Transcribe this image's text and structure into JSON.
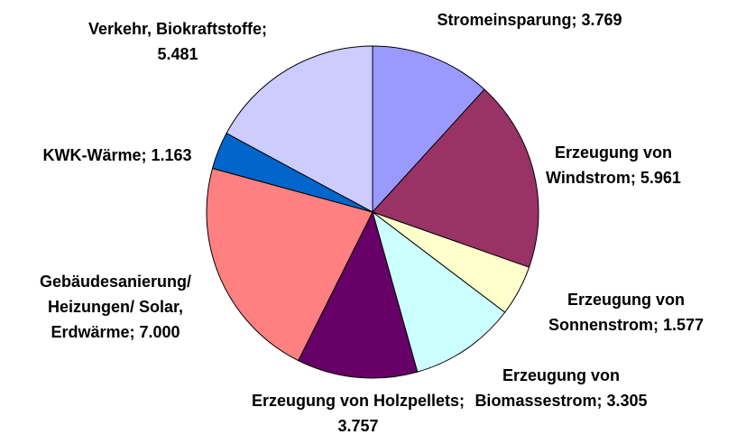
{
  "chart_data": {
    "type": "pie",
    "categories": [
      "Stromeinsparung",
      "Erzeugung von Windstrom",
      "Erzeugung von Sonnenstrom",
      "Erzeugung von Biomassestrom",
      "Erzeugung von Holzpellets",
      "Gebäudesanierung/ Heizungen/ Solar, Erdwärme",
      "KWK-Wärme",
      "Verkehr, Biokraftstoffe"
    ],
    "values": [
      3.769,
      5.961,
      1.577,
      3.305,
      3.757,
      7.0,
      1.163,
      5.481
    ],
    "value_labels": [
      "3.769",
      "5.961",
      "1.577",
      "3.305",
      "3.757",
      "7.000",
      "1.163",
      "5.481"
    ],
    "label_separator": "; ",
    "colors": [
      "#9999ff",
      "#993366",
      "#ffffcc",
      "#ccffff",
      "#660066",
      "#ff8080",
      "#0066cc",
      "#ccccff"
    ]
  }
}
